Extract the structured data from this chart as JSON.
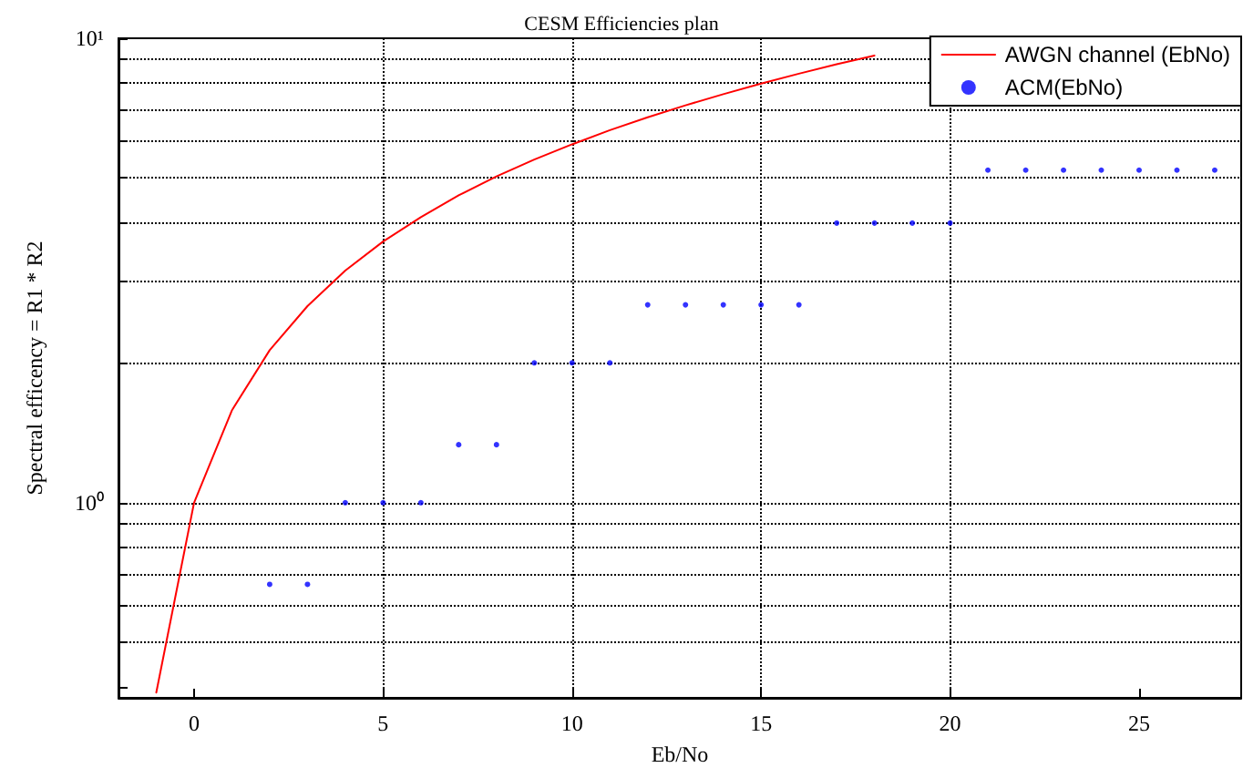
{
  "chart_data": {
    "type": "line",
    "title": "CESM Efficiencies plan",
    "xlabel": "Eb/No",
    "ylabel": "Spectral efficency = R1 * R2",
    "log": "y",
    "grid": true,
    "legend": "top right",
    "xlim": [
      -2,
      27.7
    ],
    "xticks": [
      0,
      5,
      10,
      15,
      20,
      25
    ],
    "ylim": [
      0.38,
      10
    ],
    "yticks": [
      {
        "value": 0.4,
        "label": null
      },
      {
        "value": 0.5,
        "label": null
      },
      {
        "value": 0.6,
        "label": null
      },
      {
        "value": 0.7,
        "label": null
      },
      {
        "value": 0.8,
        "label": null
      },
      {
        "value": 0.9,
        "label": null
      },
      {
        "value": 1,
        "label": "10⁰"
      },
      {
        "value": 2,
        "label": null
      },
      {
        "value": 3,
        "label": null
      },
      {
        "value": 4,
        "label": null
      },
      {
        "value": 5,
        "label": null
      },
      {
        "value": 6,
        "label": null
      },
      {
        "value": 7,
        "label": null
      },
      {
        "value": 8,
        "label": null
      },
      {
        "value": 9,
        "label": null
      },
      {
        "value": 10,
        "label": "10¹"
      }
    ],
    "series": [
      {
        "name": "AWGN channel (EbNo)",
        "type": "line",
        "color": "#ff0000",
        "marker": "none",
        "line_style": "solid",
        "x": [
          -1,
          0,
          1,
          2,
          3,
          4,
          5,
          6,
          7,
          8,
          9,
          10,
          11,
          12,
          13,
          14,
          15,
          16,
          17,
          18
        ],
        "values": [
          0.39,
          1,
          1.58,
          2.13,
          2.65,
          3.16,
          3.65,
          4.12,
          4.59,
          5.04,
          5.48,
          5.91,
          6.34,
          6.76,
          7.17,
          7.58,
          7.99,
          8.39,
          8.79,
          9.18
        ]
      },
      {
        "name": "ACM(EbNo)",
        "type": "scatter",
        "color": "#0000ff",
        "marker": "circle",
        "x": [
          2,
          3,
          4,
          5,
          6,
          7,
          8,
          9,
          10,
          11,
          12,
          13,
          14,
          15,
          16,
          17,
          18,
          19,
          20,
          21,
          22,
          23,
          24,
          25,
          26,
          27
        ],
        "values": [
          0.667,
          0.667,
          1,
          1,
          1,
          1.333,
          1.333,
          2,
          2,
          2,
          2.667,
          2.667,
          2.667,
          2.667,
          2.667,
          4,
          4,
          4,
          4,
          5.2,
          5.2,
          5.2,
          5.2,
          5.2,
          5.2,
          5.2
        ]
      }
    ]
  }
}
